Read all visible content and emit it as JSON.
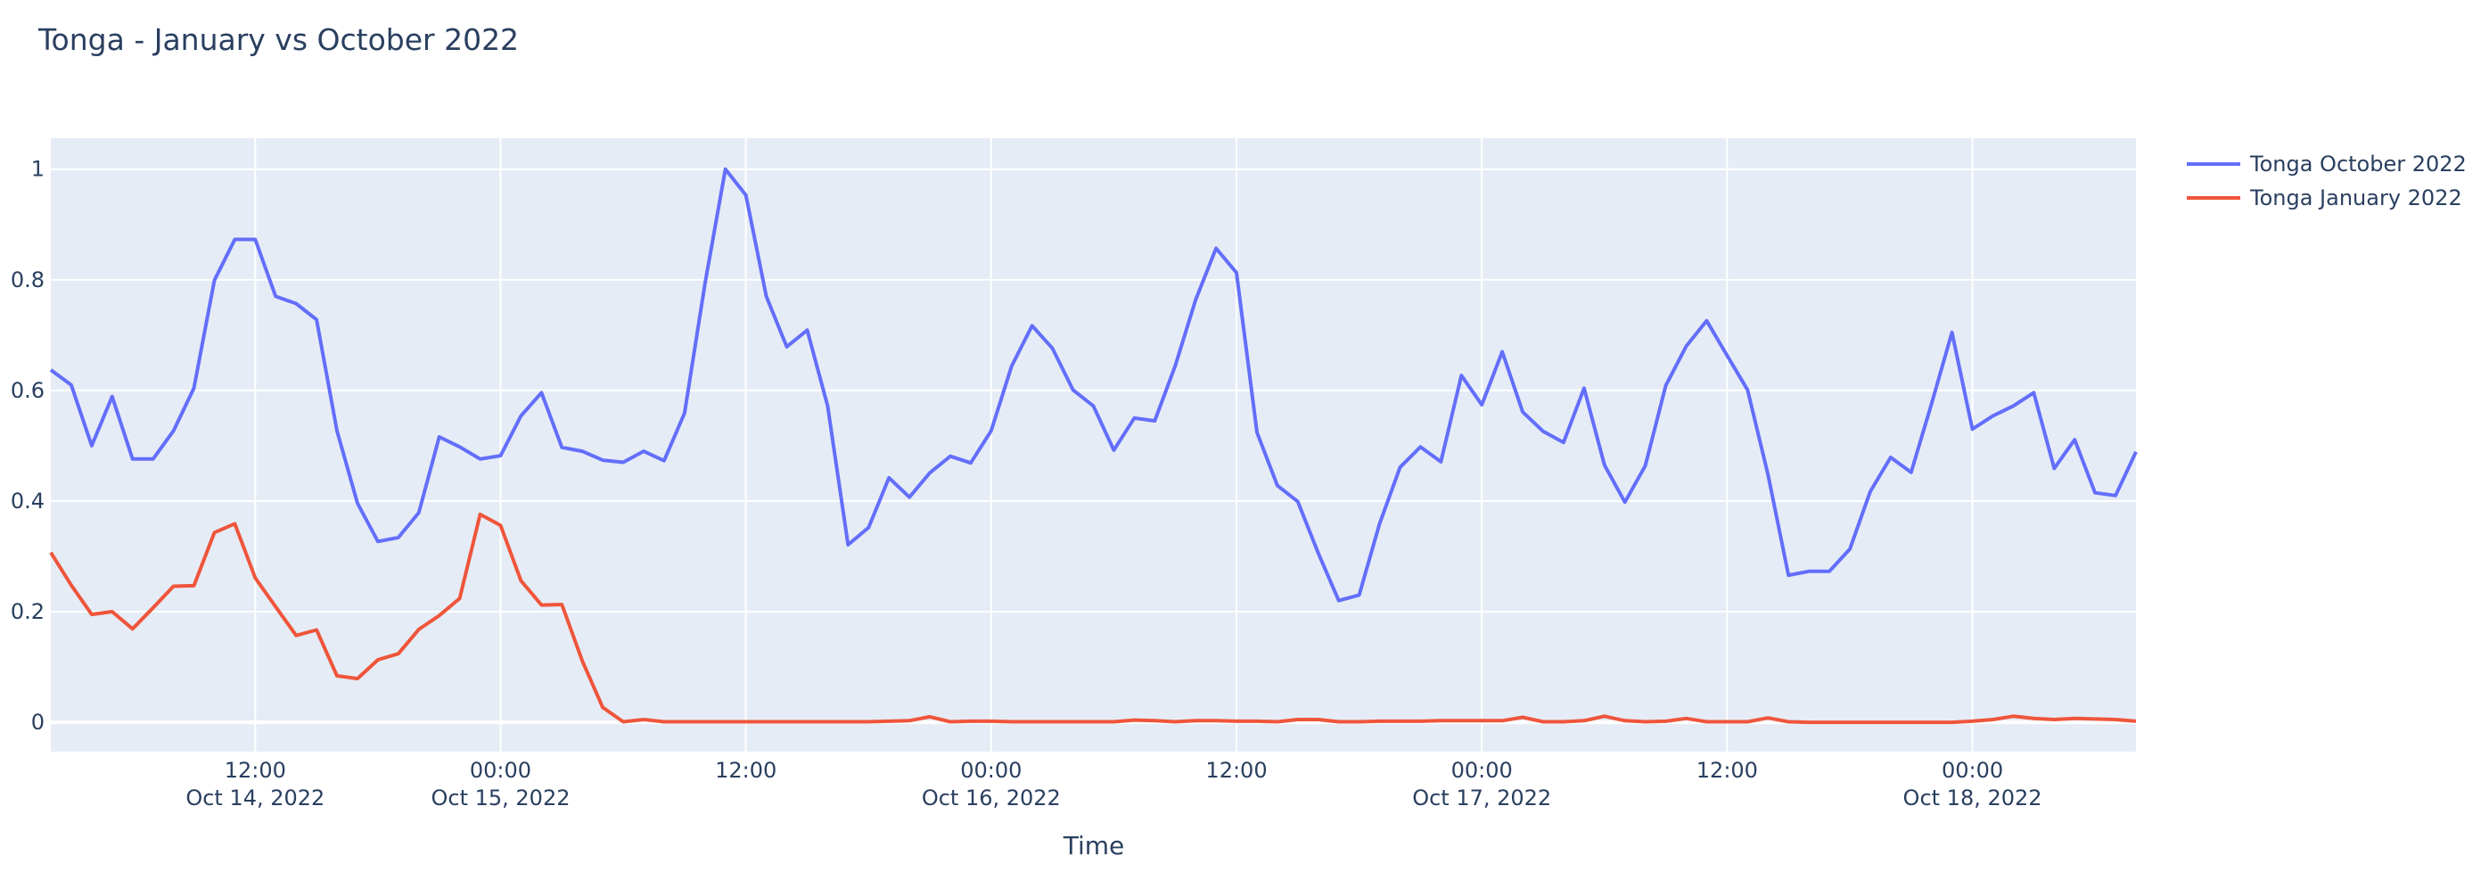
{
  "chart_data": {
    "type": "line",
    "title": "Tonga - January vs October 2022",
    "xlabel": "Time",
    "ylabel": "",
    "ylim": [
      -0.053,
      1.056
    ],
    "xlim": [
      "2022-10-14 02:00",
      "2022-10-18 08:00"
    ],
    "grid": true,
    "legend_placement": "top-right",
    "yticks": [
      0,
      0.2,
      0.4,
      0.6,
      0.8,
      1
    ],
    "ytick_labels": [
      "0",
      "0.2",
      "0.4",
      "0.6",
      "0.8",
      "1"
    ],
    "xticks": [
      {
        "t": "2022-10-14 12:00",
        "time": "12:00",
        "date": "Oct 14, 2022"
      },
      {
        "t": "2022-10-15 00:00",
        "time": "00:00",
        "date": "Oct 15, 2022"
      },
      {
        "t": "2022-10-15 12:00",
        "time": "12:00",
        "date": ""
      },
      {
        "t": "2022-10-16 00:00",
        "time": "00:00",
        "date": "Oct 16, 2022"
      },
      {
        "t": "2022-10-16 12:00",
        "time": "12:00",
        "date": ""
      },
      {
        "t": "2022-10-17 00:00",
        "time": "00:00",
        "date": "Oct 17, 2022"
      },
      {
        "t": "2022-10-17 12:00",
        "time": "12:00",
        "date": ""
      },
      {
        "t": "2022-10-18 00:00",
        "time": "00:00",
        "date": "Oct 18, 2022"
      }
    ],
    "x": [
      "2022-10-14 02:00",
      "2022-10-14 03:00",
      "2022-10-14 04:00",
      "2022-10-14 05:00",
      "2022-10-14 06:00",
      "2022-10-14 07:00",
      "2022-10-14 08:00",
      "2022-10-14 09:00",
      "2022-10-14 10:00",
      "2022-10-14 11:00",
      "2022-10-14 12:00",
      "2022-10-14 13:00",
      "2022-10-14 14:00",
      "2022-10-14 15:00",
      "2022-10-14 16:00",
      "2022-10-14 17:00",
      "2022-10-14 18:00",
      "2022-10-14 19:00",
      "2022-10-14 20:00",
      "2022-10-14 21:00",
      "2022-10-14 22:00",
      "2022-10-14 23:00",
      "2022-10-15 00:00",
      "2022-10-15 01:00",
      "2022-10-15 02:00",
      "2022-10-15 03:00",
      "2022-10-15 04:00",
      "2022-10-15 05:00",
      "2022-10-15 06:00",
      "2022-10-15 07:00",
      "2022-10-15 08:00",
      "2022-10-15 09:00",
      "2022-10-15 10:00",
      "2022-10-15 11:00",
      "2022-10-15 12:00",
      "2022-10-15 13:00",
      "2022-10-15 14:00",
      "2022-10-15 15:00",
      "2022-10-15 16:00",
      "2022-10-15 17:00",
      "2022-10-15 18:00",
      "2022-10-15 19:00",
      "2022-10-15 20:00",
      "2022-10-15 21:00",
      "2022-10-15 22:00",
      "2022-10-15 23:00",
      "2022-10-16 00:00",
      "2022-10-16 01:00",
      "2022-10-16 02:00",
      "2022-10-16 03:00",
      "2022-10-16 04:00",
      "2022-10-16 05:00",
      "2022-10-16 06:00",
      "2022-10-16 07:00",
      "2022-10-16 08:00",
      "2022-10-16 09:00",
      "2022-10-16 10:00",
      "2022-10-16 11:00",
      "2022-10-16 12:00",
      "2022-10-16 13:00",
      "2022-10-16 14:00",
      "2022-10-16 15:00",
      "2022-10-16 16:00",
      "2022-10-16 17:00",
      "2022-10-16 18:00",
      "2022-10-16 19:00",
      "2022-10-16 20:00",
      "2022-10-16 21:00",
      "2022-10-16 22:00",
      "2022-10-16 23:00",
      "2022-10-17 00:00",
      "2022-10-17 01:00",
      "2022-10-17 02:00",
      "2022-10-17 03:00",
      "2022-10-17 04:00",
      "2022-10-17 05:00",
      "2022-10-17 06:00",
      "2022-10-17 07:00",
      "2022-10-17 08:00",
      "2022-10-17 09:00",
      "2022-10-17 10:00",
      "2022-10-17 11:00",
      "2022-10-17 12:00",
      "2022-10-17 13:00",
      "2022-10-17 14:00",
      "2022-10-17 15:00",
      "2022-10-17 16:00",
      "2022-10-17 17:00",
      "2022-10-17 18:00",
      "2022-10-17 19:00",
      "2022-10-17 20:00",
      "2022-10-17 21:00",
      "2022-10-17 22:00",
      "2022-10-17 23:00",
      "2022-10-18 00:00",
      "2022-10-18 01:00",
      "2022-10-18 02:00",
      "2022-10-18 03:00",
      "2022-10-18 04:00",
      "2022-10-18 05:00",
      "2022-10-18 06:00",
      "2022-10-18 07:00",
      "2022-10-18 08:00"
    ],
    "series": [
      {
        "name": "Tonga October 2022",
        "color": "#636EFA",
        "values": [
          0.637,
          0.61,
          0.5,
          0.589,
          0.476,
          0.476,
          0.527,
          0.604,
          0.799,
          0.873,
          0.873,
          0.77,
          0.757,
          0.728,
          0.527,
          0.396,
          0.327,
          0.334,
          0.379,
          0.516,
          0.498,
          0.476,
          0.482,
          0.554,
          0.596,
          0.497,
          0.49,
          0.474,
          0.47,
          0.49,
          0.473,
          0.559,
          0.793,
          1.0,
          0.953,
          0.77,
          0.679,
          0.709,
          0.572,
          0.321,
          0.352,
          0.442,
          0.407,
          0.451,
          0.481,
          0.469,
          0.527,
          0.644,
          0.717,
          0.676,
          0.601,
          0.572,
          0.492,
          0.55,
          0.545,
          0.644,
          0.764,
          0.857,
          0.813,
          0.524,
          0.428,
          0.399,
          0.306,
          0.22,
          0.23,
          0.359,
          0.461,
          0.498,
          0.471,
          0.627,
          0.574,
          0.67,
          0.561,
          0.526,
          0.506,
          0.604,
          0.465,
          0.398,
          0.464,
          0.609,
          0.68,
          0.726,
          0.663,
          0.601,
          0.448,
          0.266,
          0.273,
          0.273,
          0.313,
          0.417,
          0.479,
          0.452,
          0.576,
          0.705,
          0.53,
          0.554,
          0.572,
          0.596,
          0.459,
          0.511,
          0.415,
          0.41,
          0.489
        ]
      },
      {
        "name": "Tonga January 2022",
        "color": "#EF553B",
        "values": [
          0.307,
          0.248,
          0.195,
          0.2,
          0.169,
          0.207,
          0.246,
          0.247,
          0.343,
          0.359,
          0.261,
          0.209,
          0.157,
          0.167,
          0.084,
          0.079,
          0.113,
          0.124,
          0.168,
          0.193,
          0.224,
          0.376,
          0.356,
          0.256,
          0.212,
          0.213,
          0.111,
          0.027,
          0.001,
          0.005,
          0.001,
          0.001,
          0.001,
          0.001,
          0.001,
          0.001,
          0.001,
          0.001,
          0.001,
          0.001,
          0.001,
          0.002,
          0.003,
          0.01,
          0.001,
          0.002,
          0.002,
          0.001,
          0.001,
          0.001,
          0.001,
          0.001,
          0.001,
          0.004,
          0.003,
          0.001,
          0.003,
          0.003,
          0.002,
          0.002,
          0.001,
          0.005,
          0.005,
          0.001,
          0.001,
          0.002,
          0.002,
          0.002,
          0.003,
          0.003,
          0.003,
          0.003,
          0.009,
          0.001,
          0.001,
          0.003,
          0.011,
          0.003,
          0.001,
          0.002,
          0.007,
          0.001,
          0.001,
          0.001,
          0.008,
          0.001,
          0,
          0,
          0,
          0,
          0,
          0,
          0,
          0,
          0.002,
          0.005,
          0.011,
          0.007,
          0.005,
          0.007,
          0.006,
          0.005,
          0.002
        ]
      }
    ]
  },
  "colors": {
    "plot_bg": "#E5ECF6",
    "grid": "#FFFFFF",
    "text": "#2a3f5f"
  }
}
